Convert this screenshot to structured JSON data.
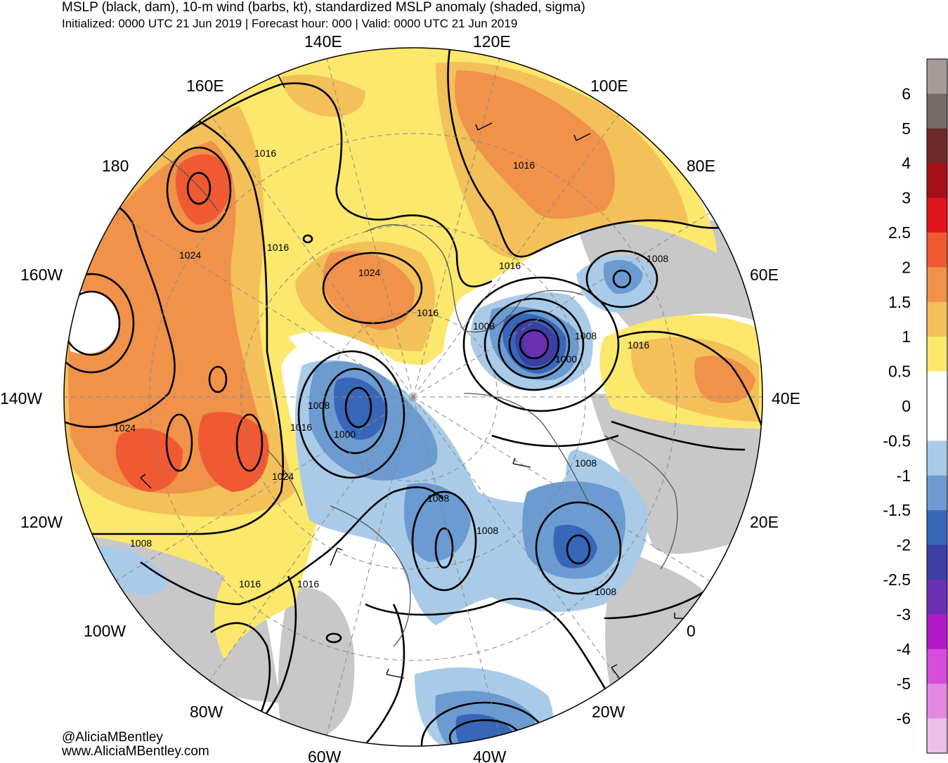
{
  "header": {
    "title": "MSLP (black, dam), 10-m wind (barbs, kt), standardized MSLP anomaly (shaded, sigma)",
    "subtitle": "Initialized: 0000 UTC 21 Jun 2019 | Forecast hour: 000 | Valid: 0000 UTC 21 Jun 2019"
  },
  "credits": {
    "handle": "@AliciaMBentley",
    "website": "www.AliciaMBentley.com"
  },
  "longitude_labels": [
    "140E",
    "120E",
    "160E",
    "100E",
    "180",
    "80E",
    "160W",
    "60E",
    "140W",
    "40E",
    "120W",
    "20E",
    "100W",
    "0",
    "80W",
    "20W",
    "60W",
    "40W"
  ],
  "isobar_labels": [
    "1016",
    "1016",
    "1016",
    "1024",
    "1024",
    "1016",
    "1008",
    "1008",
    "1016",
    "1008",
    "1000",
    "1016",
    "1008",
    "1000",
    "1016",
    "1024",
    "1024",
    "1008",
    "1008",
    "1008",
    "1008",
    "1016",
    "1016",
    "1008"
  ],
  "colorbar": {
    "labels": [
      "6",
      "5",
      "4",
      "3",
      "2.5",
      "2",
      "1.5",
      "1",
      "0.5",
      "0",
      "-0.5",
      "-1",
      "-1.5",
      "-2",
      "-2.5",
      "-3",
      "-4",
      "-5",
      "-6"
    ],
    "colors": [
      "#a59b99",
      "#756c6a",
      "#6d2a28",
      "#a50f15",
      "#e2141b",
      "#f05a33",
      "#f0924a",
      "#f3c05a",
      "#fbe86d",
      "#ffffff",
      "#ffffff",
      "#a9cbe8",
      "#6b9bd1",
      "#3866b8",
      "#3b3fa3",
      "#6b2fb3",
      "#b11ac9",
      "#d84bdc",
      "#e586e2",
      "#ebc0ea"
    ],
    "roles": [
      "above-6",
      "5-6",
      "4-5",
      "3-4",
      "2.5-3",
      "2-2.5",
      "1.5-2",
      "1-1.5",
      "0.5-1",
      "0-0.5",
      "-0.5-0",
      "-1--0.5",
      "-1.5--1",
      "-2--1.5",
      "-2.5--2",
      "-3--2.5",
      "-4--3",
      "-5--4",
      "-6--5",
      "below--6"
    ]
  },
  "map_colors": {
    "land_gray": "#c8c8c8",
    "coastline": "#555555",
    "isobar": "#000000",
    "graticule": "#888888"
  }
}
